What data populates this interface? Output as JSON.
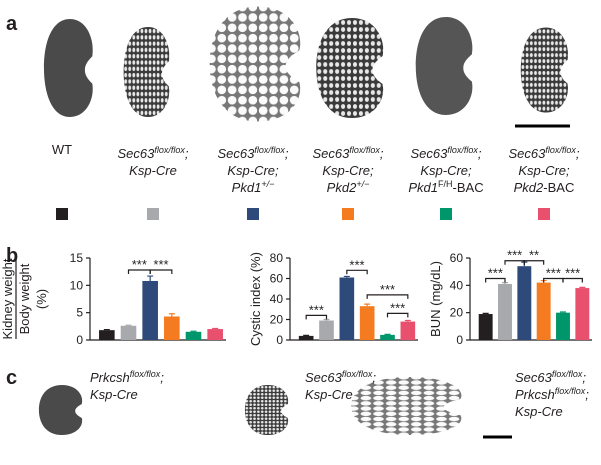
{
  "panel_labels": [
    "a",
    "b",
    "c"
  ],
  "genotypes": [
    {
      "color": "#231f20",
      "lines": [
        [
          {
            "text": "WT",
            "roman": true
          }
        ]
      ]
    },
    {
      "color": "#a7a9ac",
      "lines": [
        [
          {
            "text": "Sec63"
          },
          {
            "text": "flox/flox",
            "sup": true
          },
          {
            "text": ";"
          }
        ],
        [
          {
            "text": "Ksp-Cre"
          }
        ]
      ]
    },
    {
      "color": "#2e4a7a",
      "lines": [
        [
          {
            "text": "Sec63"
          },
          {
            "text": "flox/flox",
            "sup": true
          },
          {
            "text": ";"
          }
        ],
        [
          {
            "text": "Ksp-Cre;"
          }
        ],
        [
          {
            "text": "Pkd1"
          },
          {
            "text": "+/−",
            "sup": true
          }
        ]
      ]
    },
    {
      "color": "#f47b20",
      "lines": [
        [
          {
            "text": "Sec63"
          },
          {
            "text": "flox/flox",
            "sup": true
          },
          {
            "text": ";"
          }
        ],
        [
          {
            "text": "Ksp-Cre;"
          }
        ],
        [
          {
            "text": "Pkd2"
          },
          {
            "text": "+/−",
            "sup": true
          }
        ]
      ]
    },
    {
      "color": "#00966c",
      "lines": [
        [
          {
            "text": "Sec63"
          },
          {
            "text": "flox/flox",
            "sup": true
          },
          {
            "text": ";"
          }
        ],
        [
          {
            "text": "Ksp-Cre;"
          }
        ],
        [
          {
            "text": "Pkd1"
          },
          {
            "text": "F/H",
            "sup": true,
            "roman": true
          },
          {
            "text": "-BAC",
            "roman": true
          }
        ]
      ]
    },
    {
      "color": "#e8506e",
      "lines": [
        [
          {
            "text": "Sec63"
          },
          {
            "text": "flox/flox",
            "sup": true
          },
          {
            "text": ";"
          }
        ],
        [
          {
            "text": "Ksp-Cre;"
          }
        ],
        [
          {
            "text": "Pkd2"
          },
          {
            "text": "-BAC",
            "roman": true
          }
        ]
      ]
    }
  ],
  "panel_c_labels": [
    {
      "lines": [
        [
          {
            "text": "Prkcsh"
          },
          {
            "text": "flox/flox",
            "sup": true
          },
          {
            "text": ";"
          }
        ],
        [
          {
            "text": "Ksp-Cre"
          }
        ]
      ]
    },
    {
      "lines": [
        [
          {
            "text": "Sec63"
          },
          {
            "text": "flox/flox",
            "sup": true
          },
          {
            "text": ";"
          }
        ],
        [
          {
            "text": "Ksp-Cre"
          }
        ]
      ]
    },
    {
      "lines": [
        [
          {
            "text": "Sec63"
          },
          {
            "text": "flox/flox",
            "sup": true
          },
          {
            "text": ";"
          }
        ],
        [
          {
            "text": "Prkcsh"
          },
          {
            "text": "flox/flox",
            "sup": true
          },
          {
            "text": ";"
          }
        ],
        [
          {
            "text": "Ksp-Cre"
          }
        ]
      ]
    }
  ],
  "chart_data": [
    {
      "type": "bar",
      "ylabel": {
        "numerator": "Kidney weight",
        "denominator": "Body weight",
        "unit": "(%)"
      },
      "values": [
        1.8,
        2.6,
        10.8,
        4.3,
        1.5,
        2.0
      ],
      "errors": [
        0.1,
        0.1,
        0.9,
        0.5,
        0.1,
        0.1
      ],
      "colors": [
        "#231f20",
        "#a7a9ac",
        "#2e4a7a",
        "#f47b20",
        "#00966c",
        "#e8506e"
      ],
      "ylim": [
        0,
        15
      ],
      "yticks": [
        0,
        5,
        10,
        15
      ],
      "significance": [
        {
          "from": 1,
          "to": 2,
          "y": 12.8,
          "label": "***"
        },
        {
          "from": 2,
          "to": 3,
          "y": 12.8,
          "label": "***"
        }
      ]
    },
    {
      "type": "bar",
      "ylabel": "Cystic index (%)",
      "values": [
        4,
        19,
        61,
        33,
        5,
        18
      ],
      "errors": [
        0.5,
        1,
        1,
        2,
        0.5,
        1
      ],
      "colors": [
        "#231f20",
        "#a7a9ac",
        "#2e4a7a",
        "#f47b20",
        "#00966c",
        "#e8506e"
      ],
      "ylim": [
        0,
        80
      ],
      "yticks": [
        0,
        20,
        40,
        60,
        80
      ],
      "significance": [
        {
          "from": 0,
          "to": 1,
          "y": 24,
          "label": "***"
        },
        {
          "from": 2,
          "to": 3,
          "y": 68,
          "label": "***"
        },
        {
          "from": 3,
          "to": 5,
          "y": 44,
          "label": "***"
        },
        {
          "from": 4,
          "to": 5,
          "y": 26,
          "label": "***"
        }
      ]
    },
    {
      "type": "bar",
      "ylabel": "BUN (mg/dL)",
      "values": [
        19,
        41,
        54,
        42,
        20,
        38
      ],
      "errors": [
        0.5,
        1,
        3,
        1.5,
        0.5,
        0.5
      ],
      "colors": [
        "#231f20",
        "#a7a9ac",
        "#2e4a7a",
        "#f47b20",
        "#00966c",
        "#e8506e"
      ],
      "ylim": [
        0,
        60
      ],
      "yticks": [
        0,
        20,
        40,
        60
      ],
      "significance": [
        {
          "from": 0,
          "to": 1,
          "y": 45,
          "label": "***"
        },
        {
          "from": 1,
          "to": 2,
          "y": 58,
          "label": "***"
        },
        {
          "from": 2,
          "to": 3,
          "y": 58,
          "label": "**"
        },
        {
          "from": 3,
          "to": 4,
          "y": 45,
          "label": "***"
        },
        {
          "from": 4,
          "to": 5,
          "y": 45,
          "label": "***"
        }
      ]
    }
  ]
}
